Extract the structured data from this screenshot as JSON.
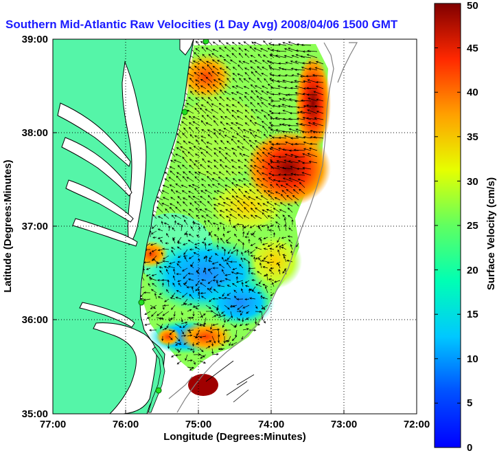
{
  "title": "Southern Mid-Atlantic Raw Velocities (1 Day Avg) 2008/04/06 1500 GMT",
  "map": {
    "xlabel": "Longitude (Degrees:Minutes)",
    "ylabel": "Latitude (Degrees:Minutes)",
    "x_ticks": [
      "77:00",
      "76:00",
      "75:00",
      "74:00",
      "73:00",
      "72:00"
    ],
    "y_ticks": [
      "39:00",
      "38:00",
      "37:00",
      "36:00",
      "35:00"
    ],
    "x_range": [
      -77,
      -72
    ],
    "y_range": [
      35,
      39
    ],
    "grid": "dotted",
    "land_color": "#55f5a8",
    "coast_color": "#000000",
    "bathymetry_color": "#808080",
    "station_color": "#22dd22",
    "arrow_color": "#000000"
  },
  "colorbar": {
    "label": "Surface Velocity (cm/s)",
    "ticks": [
      "0",
      "5",
      "10",
      "15",
      "20",
      "25",
      "30",
      "35",
      "40",
      "45",
      "50"
    ],
    "range": [
      0,
      50
    ],
    "colormap": "jet"
  }
}
